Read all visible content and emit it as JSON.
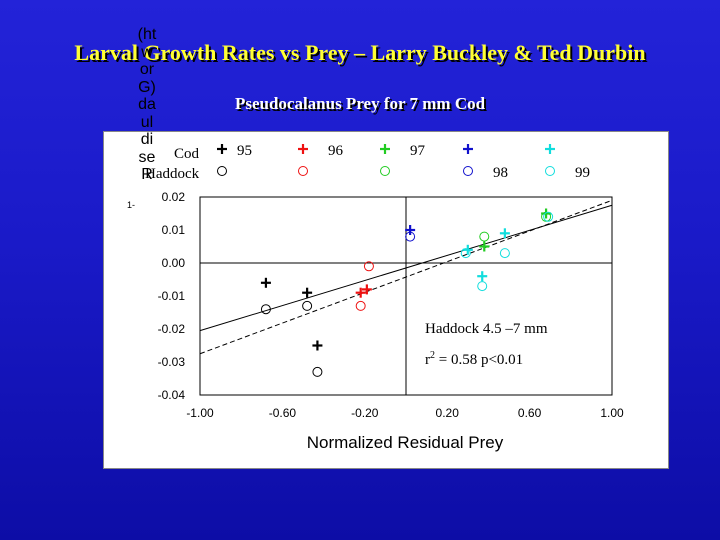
{
  "slide": {
    "title": "Larval Growth Rates vs Prey – Larry Buckley & Ted Durbin",
    "subtitle": "Pseudocalanus Prey for 7 mm Cod"
  },
  "colors": {
    "background": "#1a1ac8",
    "title": "#ffff33",
    "black": "#000000",
    "red": "#ee1111",
    "blue": "#1111cc",
    "green": "#22cc22",
    "cyan": "#11dddd"
  },
  "chart_data": {
    "type": "scatter",
    "xlabel": "Normalized Residual Prey",
    "ylabel": "(htworG)dauldiseR",
    "ylabel_extra": "1-",
    "xlim": [
      -1.0,
      1.0
    ],
    "ylim": [
      -0.04,
      0.02
    ],
    "xticks": [
      "-1.00",
      "-0.60",
      "-0.20",
      "0.20",
      "0.60",
      "1.00"
    ],
    "xtick_values": [
      -1.0,
      -0.6,
      -0.2,
      0.2,
      0.6,
      1.0
    ],
    "yticks": [
      "0.02",
      "0.01",
      "0.00",
      "-0.01",
      "-0.02",
      "-0.03",
      "-0.04"
    ],
    "ytick_values": [
      0.02,
      0.01,
      0.0,
      -0.01,
      -0.02,
      -0.03,
      -0.04
    ],
    "zero_lines": true,
    "legend": {
      "row_labels": [
        "Cod",
        "Haddock"
      ],
      "entries": [
        {
          "label": "95",
          "species": "Cod",
          "marker": "+",
          "color": "#000000"
        },
        {
          "label": "",
          "species": "Haddock",
          "marker": "o",
          "color": "#000000"
        },
        {
          "label": "96",
          "species": "Cod",
          "marker": "+",
          "color": "#ee1111"
        },
        {
          "label": "",
          "species": "Haddock",
          "marker": "o",
          "color": "#ee1111"
        },
        {
          "label": "",
          "species": "Cod",
          "marker": "+",
          "color": "#22cc22"
        },
        {
          "label": "97",
          "species": "Haddock",
          "marker": "o",
          "color": "#22cc22"
        },
        {
          "label": "",
          "species": "Cod",
          "marker": "+",
          "color": "#1111cc"
        },
        {
          "label": "98",
          "species": "Haddock",
          "marker": "o",
          "color": "#1111cc"
        },
        {
          "label": "",
          "species": "Cod",
          "marker": "+",
          "color": "#11dddd"
        },
        {
          "label": "99",
          "species": "Haddock",
          "marker": "o",
          "color": "#11dddd"
        }
      ]
    },
    "series": [
      {
        "marker": "+",
        "color": "#000000",
        "points": [
          [
            -0.68,
            -0.006
          ],
          [
            -0.48,
            -0.009
          ],
          [
            -0.43,
            -0.025
          ]
        ]
      },
      {
        "marker": "o",
        "color": "#000000",
        "points": [
          [
            -0.68,
            -0.014
          ],
          [
            -0.48,
            -0.013
          ],
          [
            -0.43,
            -0.033
          ]
        ]
      },
      {
        "marker": "+",
        "color": "#ee1111",
        "points": [
          [
            -0.22,
            -0.009
          ],
          [
            -0.19,
            -0.008
          ]
        ]
      },
      {
        "marker": "o",
        "color": "#ee1111",
        "points": [
          [
            -0.22,
            -0.013
          ],
          [
            -0.18,
            -0.001
          ]
        ]
      },
      {
        "marker": "+",
        "color": "#22cc22",
        "points": [
          [
            0.38,
            0.005
          ],
          [
            0.68,
            0.015
          ]
        ]
      },
      {
        "marker": "o",
        "color": "#22cc22",
        "points": [
          [
            0.38,
            0.008
          ],
          [
            0.68,
            0.014
          ]
        ]
      },
      {
        "marker": "+",
        "color": "#1111cc",
        "points": [
          [
            0.02,
            0.01
          ]
        ]
      },
      {
        "marker": "o",
        "color": "#1111cc",
        "points": [
          [
            0.02,
            0.008
          ]
        ]
      },
      {
        "marker": "+",
        "color": "#11dddd",
        "points": [
          [
            0.3,
            0.004
          ],
          [
            0.37,
            -0.004
          ],
          [
            0.48,
            0.009
          ]
        ]
      },
      {
        "marker": "o",
        "color": "#11dddd",
        "points": [
          [
            0.29,
            0.003
          ],
          [
            0.37,
            -0.007
          ],
          [
            0.48,
            0.003
          ],
          [
            0.69,
            0.014
          ]
        ]
      }
    ],
    "regression_lines": [
      {
        "style": "solid",
        "x": [
          -1.0,
          1.0
        ],
        "y": [
          -0.0205,
          0.0175
        ]
      },
      {
        "style": "dashed",
        "x": [
          -1.0,
          1.0
        ],
        "y": [
          -0.0275,
          0.019
        ]
      }
    ],
    "annotations": {
      "line1": "Haddock 4.5 –7 mm",
      "r2_label": "r",
      "r2_sup": "2",
      "r2_value": " = 0.58   p<0.01"
    }
  }
}
